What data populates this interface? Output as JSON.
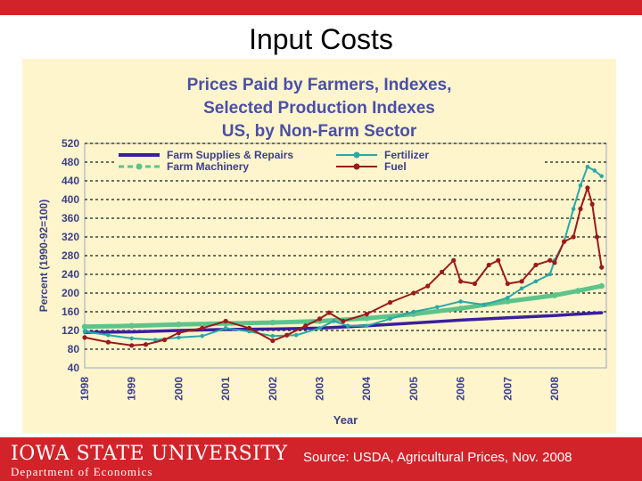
{
  "slide": {
    "title": "Input Costs",
    "university": "IOWA STATE UNIVERSITY",
    "department": "Department of Economics",
    "source": "Source: USDA, Agricultural Prices, Nov. 2008"
  },
  "colors": {
    "accent_red": "#d2232a",
    "chart_bg": "#fef5cc",
    "title_blue": "#4a4fa8",
    "supplies": "#3a1fa0",
    "machinery": "#5cc48a",
    "fertilizer": "#2aa8a8",
    "fuel": "#9b1b1b"
  },
  "chart_data": {
    "type": "line",
    "title": [
      "Prices Paid by Farmers, Indexes,",
      "Selected Production Indexes",
      "US, by Non-Farm Sector"
    ],
    "xlabel": "Year",
    "ylabel": "Percent (1990-92=100)",
    "xlim": [
      1998,
      2009.1
    ],
    "ylim": [
      40,
      520
    ],
    "yticks": [
      40,
      80,
      120,
      160,
      200,
      240,
      280,
      320,
      360,
      400,
      440,
      480,
      520
    ],
    "xticks": [
      "1998",
      "1999",
      "2000",
      "2001",
      "2002",
      "2003",
      "2004",
      "2005",
      "2006",
      "2007",
      "2008"
    ],
    "grid": true,
    "legend_position": "top",
    "series": [
      {
        "name": "Farm Supplies & Repairs",
        "key": "supplies",
        "x": [
          1998,
          1999,
          2000,
          2001,
          2002,
          2003,
          2004,
          2005,
          2006,
          2007,
          2008,
          2008.5,
          2009.0
        ],
        "y": [
          116,
          117,
          120,
          122,
          123,
          125,
          130,
          136,
          142,
          147,
          152,
          155,
          158
        ]
      },
      {
        "name": "Farm Machinery",
        "key": "machinery",
        "x": [
          1998,
          1999,
          2000,
          2001,
          2002,
          2003,
          2004,
          2005,
          2006,
          2007,
          2008,
          2008.5,
          2009.0
        ],
        "y": [
          128,
          130,
          133,
          135,
          137,
          140,
          146,
          155,
          167,
          182,
          195,
          205,
          215
        ]
      },
      {
        "name": "Fertilizer",
        "key": "fertilizer",
        "x": [
          1998,
          1998.5,
          1999,
          1999.5,
          2000,
          2000.5,
          2001,
          2001.5,
          2002,
          2002.5,
          2003,
          2003.3,
          2003.6,
          2004,
          2004.5,
          2005,
          2005.5,
          2006,
          2006.5,
          2007,
          2007.3,
          2007.6,
          2007.9,
          2008,
          2008.2,
          2008.4,
          2008.55,
          2008.7,
          2008.85,
          2009.0
        ],
        "y": [
          118,
          110,
          103,
          100,
          105,
          108,
          125,
          118,
          108,
          110,
          125,
          140,
          130,
          130,
          145,
          160,
          170,
          182,
          175,
          190,
          210,
          225,
          240,
          270,
          310,
          380,
          430,
          470,
          462,
          450
        ]
      },
      {
        "name": "Fuel",
        "key": "fuel",
        "x": [
          1998,
          1998.5,
          1999,
          1999.3,
          1999.7,
          2000,
          2000.5,
          2001,
          2001.5,
          2002,
          2002.3,
          2002.7,
          2003,
          2003.2,
          2003.5,
          2004,
          2004.5,
          2005,
          2005.3,
          2005.6,
          2005.85,
          2006,
          2006.3,
          2006.6,
          2006.8,
          2007,
          2007.3,
          2007.6,
          2007.9,
          2008,
          2008.2,
          2008.4,
          2008.55,
          2008.7,
          2008.8,
          2008.9,
          2009.0
        ],
        "y": [
          105,
          95,
          88,
          90,
          100,
          115,
          125,
          140,
          125,
          98,
          110,
          130,
          145,
          158,
          140,
          155,
          180,
          200,
          215,
          245,
          270,
          225,
          220,
          260,
          270,
          220,
          225,
          260,
          270,
          265,
          310,
          320,
          380,
          425,
          390,
          320,
          255
        ]
      }
    ]
  }
}
